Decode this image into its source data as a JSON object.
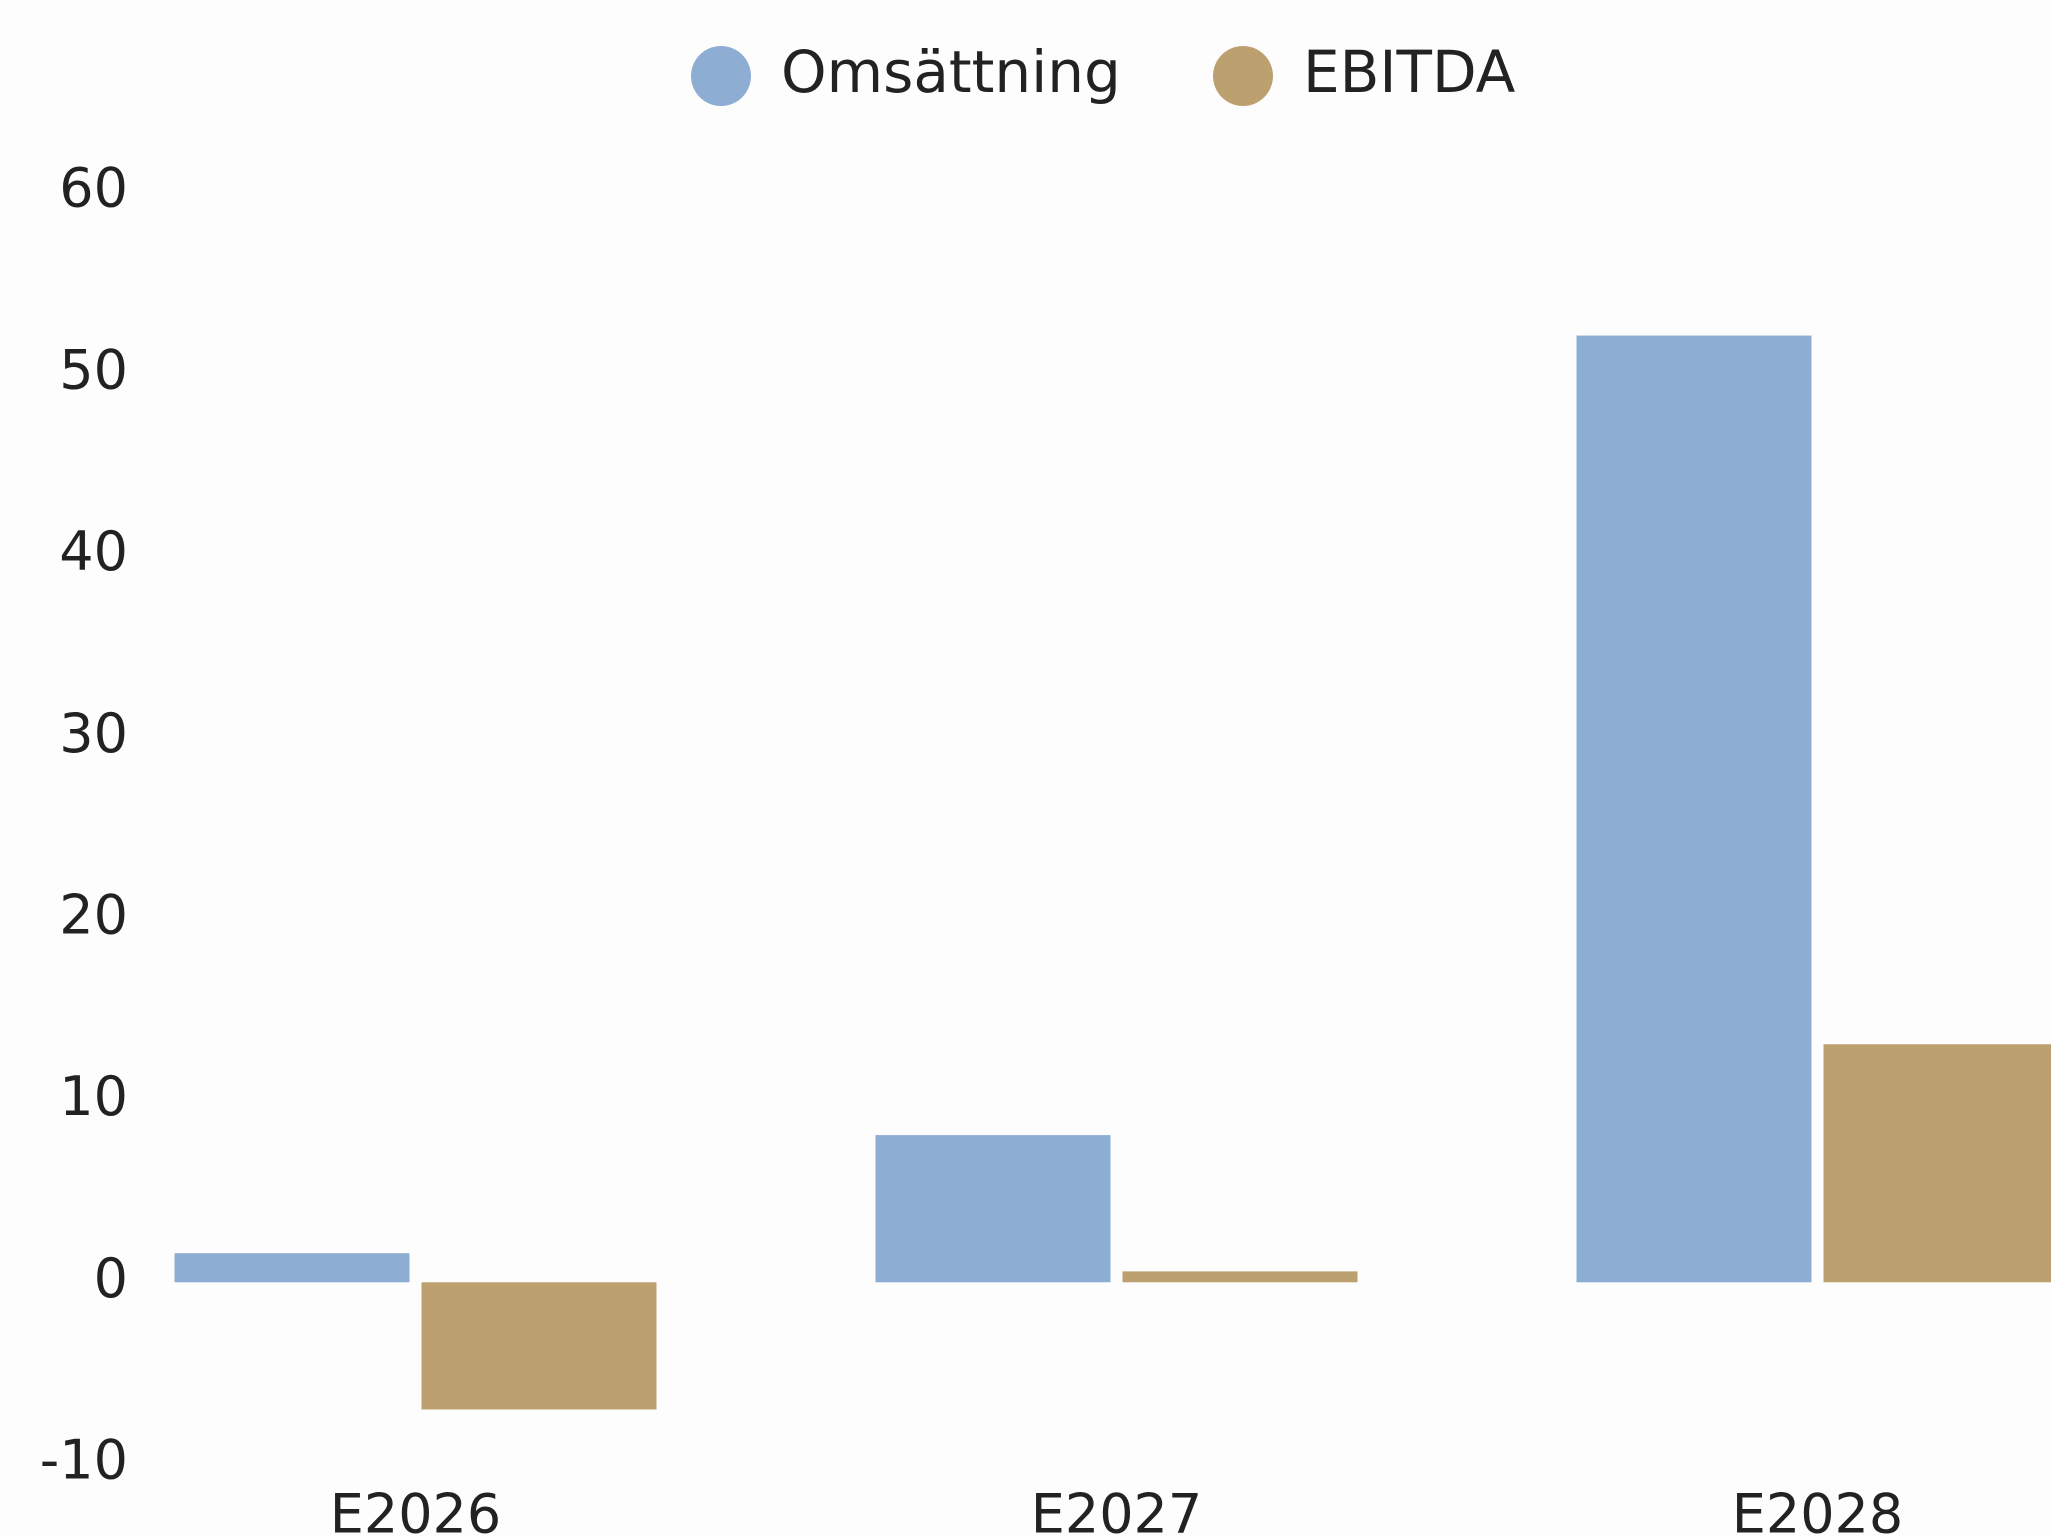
{
  "chart_data": {
    "type": "bar",
    "categories": [
      "E2026",
      "E2027",
      "E2028"
    ],
    "series": [
      {
        "name": "Omsättning",
        "color": "#8eadd3",
        "values": [
          1.6,
          8.1,
          52.1
        ]
      },
      {
        "name": "EBITDA",
        "color": "#bda070",
        "values": [
          -7.0,
          0.6,
          13.1
        ]
      }
    ],
    "ylim": [
      -10,
      60
    ],
    "yticks": [
      -10,
      0,
      10,
      20,
      30,
      40,
      50,
      60
    ],
    "grid": false,
    "legend": "top"
  }
}
